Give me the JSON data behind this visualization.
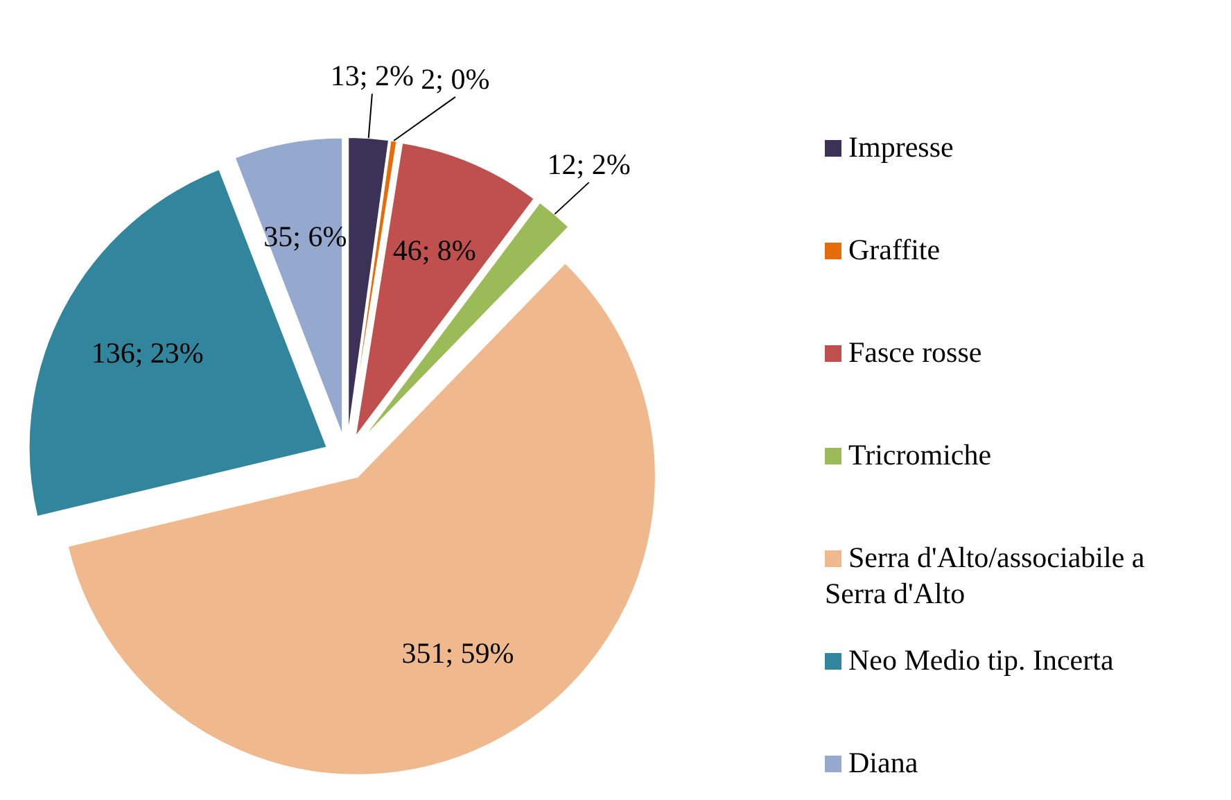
{
  "chart_data": {
    "type": "pie",
    "categories": [
      "Impresse",
      "Graffite",
      "Fasce rosse",
      "Tricromiche",
      "Serra d'Alto/associabile a Serra d'Alto",
      "Neo Medio tip. Incerta",
      "Diana"
    ],
    "values": [
      13,
      2,
      46,
      12,
      351,
      136,
      35
    ],
    "colors": [
      "#3c3157",
      "#e46c0a",
      "#c0504d",
      "#9bbb59",
      "#f0b98d",
      "#31859c",
      "#95a9cf"
    ],
    "value_labels": [
      "13; 2%",
      "2; 0%",
      "46; 8%",
      "12; 2%",
      "351; 59%",
      "136; 23%",
      "35; 6%"
    ],
    "legend": "right"
  }
}
